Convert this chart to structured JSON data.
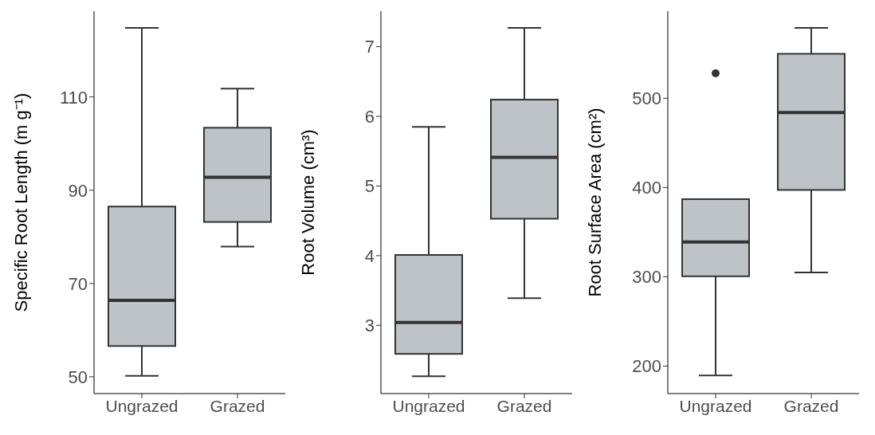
{
  "chart_data": [
    {
      "type": "box",
      "ylabel": "Specific Root Length (m g⁻¹)",
      "categories": [
        "Ungrazed",
        "Grazed"
      ],
      "color": "#bec3c7",
      "ylim": [
        46.4,
        128.4
      ],
      "yticks": [
        50,
        70,
        90,
        110
      ],
      "boxes": [
        {
          "low": 50.2,
          "q1": 56.6,
          "median": 66.4,
          "q3": 86.5,
          "high": 124.8
        },
        {
          "low": 77.9,
          "q1": 83.2,
          "median": 92.8,
          "q3": 103.4,
          "high": 111.8
        }
      ]
    },
    {
      "type": "box",
      "ylabel": "Root Volume (cm³)",
      "categories": [
        "Ungrazed",
        "Grazed"
      ],
      "color": "#bec3c7",
      "ylim": [
        2.02,
        7.51
      ],
      "yticks": [
        3,
        4,
        5,
        6,
        7
      ],
      "boxes": [
        {
          "low": 2.27,
          "q1": 2.59,
          "median": 3.04,
          "q3": 4.01,
          "high": 5.85
        },
        {
          "low": 3.39,
          "q1": 4.53,
          "median": 5.41,
          "q3": 6.24,
          "high": 7.27
        }
      ]
    },
    {
      "type": "box",
      "ylabel": "Root Surface Area (cm²)",
      "categories": [
        "Ungrazed",
        "Grazed"
      ],
      "color": "#bec3c7",
      "ylim": [
        169.2,
        597.6
      ],
      "yticks": [
        200,
        300,
        400,
        500
      ],
      "boxes": [
        {
          "low": 189.4,
          "q1": 300.6,
          "median": 339,
          "q3": 387,
          "high": 387,
          "outliers": [
            528
          ]
        },
        {
          "low": 304.8,
          "q1": 397.3,
          "median": 484,
          "q3": 549.8,
          "high": 578.9
        }
      ]
    }
  ]
}
